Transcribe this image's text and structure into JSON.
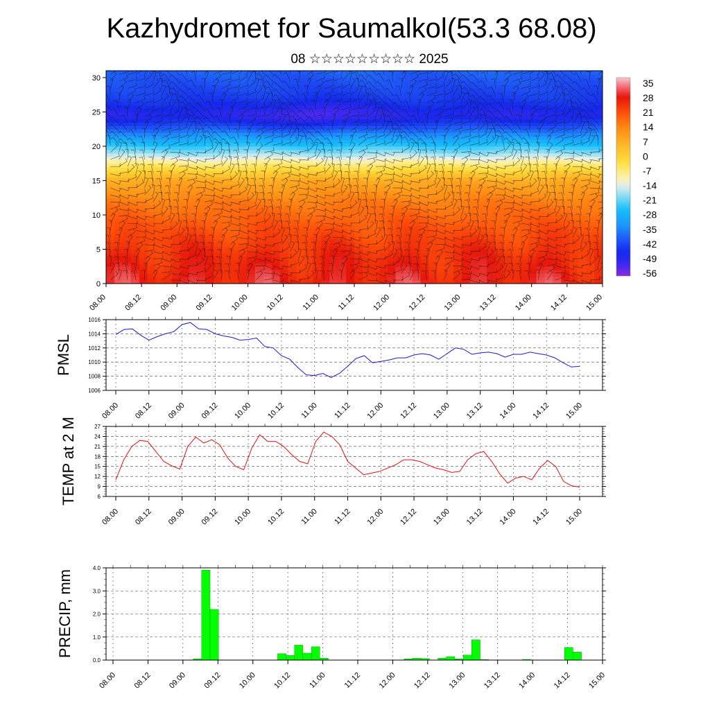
{
  "title": "Kazhydromet for Saumalkol(53.3 68.08)",
  "subtitle": "08 ☆☆☆☆☆☆☆☆☆ 2025",
  "time_labels": [
    "08.00",
    "08.12",
    "09.00",
    "09.12",
    "10.00",
    "10.12",
    "11.00",
    "11.12",
    "12.00",
    "12.12",
    "13.00",
    "13.12",
    "14.00",
    "14.12",
    "15.00"
  ],
  "colors": {
    "pmsl_line": "#1a1acc",
    "temp_line": "#e01010",
    "precip_bar": "#00ff00",
    "precip_edge": "#008800"
  },
  "chart_data": [
    {
      "type": "heatmap",
      "xlabel": "",
      "ylabel": "",
      "y_ticks": [
        0,
        5,
        10,
        15,
        20,
        25,
        30
      ],
      "ylim": [
        0,
        31
      ],
      "colorbar": {
        "ticks": [
          35,
          28,
          21,
          14,
          7,
          0,
          -7,
          -14,
          -21,
          -28,
          -35,
          -42,
          -49,
          -56
        ],
        "range": [
          -62,
          40
        ],
        "placement": "right"
      },
      "level_temps": [
        {
          "level": 0,
          "value": 30
        },
        {
          "level": 4,
          "value": 27
        },
        {
          "level": 8,
          "value": 22
        },
        {
          "level": 12,
          "value": 16
        },
        {
          "level": 15,
          "value": 8
        },
        {
          "level": 17,
          "value": -5
        },
        {
          "level": 19,
          "value": -20
        },
        {
          "level": 21,
          "value": -32
        },
        {
          "level": 23,
          "value": -45
        },
        {
          "level": 24.5,
          "value": -53
        },
        {
          "level": 27,
          "value": -47
        },
        {
          "level": 31,
          "value": -42
        }
      ],
      "overlay": "wind barbs",
      "grid": false
    },
    {
      "type": "line",
      "ylabel": "PMSL",
      "ylim": [
        1006,
        1016
      ],
      "y_ticks": [
        1006,
        1008,
        1010,
        1012,
        1014,
        1016
      ],
      "grid": true,
      "values": [
        1013.9,
        1014.6,
        1014.7,
        1013.8,
        1013.1,
        1013.6,
        1014.0,
        1014.3,
        1015.3,
        1015.6,
        1014.7,
        1014.6,
        1014.0,
        1013.7,
        1013.5,
        1013.1,
        1013.2,
        1013.4,
        1012.2,
        1012.0,
        1010.9,
        1010.4,
        1009.2,
        1008.2,
        1008.1,
        1008.4,
        1007.8,
        1008.4,
        1009.4,
        1010.5,
        1010.9,
        1009.9,
        1010.1,
        1010.3,
        1010.6,
        1010.6,
        1011.0,
        1011.2,
        1011.0,
        1010.4,
        1011.2,
        1012.0,
        1011.8,
        1011.1,
        1011.3,
        1011.4,
        1011.2,
        1010.7,
        1011.1,
        1011.1,
        1011.4,
        1011.2,
        1011.0,
        1010.6,
        1009.9,
        1009.3,
        1009.4
      ]
    },
    {
      "type": "line",
      "ylabel": "TEMP at 2 M",
      "ylim": [
        6,
        27
      ],
      "y_ticks": [
        6,
        9,
        12,
        15,
        18,
        21,
        24,
        27
      ],
      "grid": true,
      "values": [
        11,
        17,
        21,
        22.8,
        22.5,
        19.5,
        16.5,
        15.2,
        14.2,
        21,
        23.8,
        22,
        23,
        21.5,
        17.5,
        15,
        14,
        20.5,
        24.5,
        22.5,
        22.5,
        21,
        18.5,
        16.5,
        15.8,
        22.5,
        25.3,
        24,
        21.5,
        16.5,
        14.5,
        12.5,
        13,
        13.5,
        14.5,
        15.5,
        17,
        17,
        16.5,
        15.5,
        14.5,
        14,
        13.2,
        13.5,
        17,
        18.8,
        19.5,
        16.5,
        12.8,
        10,
        11.5,
        12,
        11,
        14.5,
        16.8,
        15,
        10.5,
        9.2,
        8.8
      ]
    },
    {
      "type": "bar",
      "ylabel": "PRECIP, mm",
      "ylim": [
        0,
        4
      ],
      "y_ticks": [
        0,
        1,
        2,
        3,
        4
      ],
      "y_tick_labels": [
        "0.0",
        "1.0",
        "2.0",
        "3.0",
        "4.0"
      ],
      "grid": true,
      "values": [
        0,
        0,
        0,
        0,
        0,
        0,
        0,
        0,
        0,
        0,
        0.05,
        3.9,
        2.2,
        0,
        0,
        0,
        0,
        0,
        0,
        0,
        0.28,
        0.2,
        0.65,
        0.3,
        0.58,
        0.08,
        0,
        0,
        0,
        0,
        0,
        0,
        0,
        0,
        0,
        0.05,
        0.08,
        0.07,
        0,
        0.08,
        0.15,
        0.05,
        0.22,
        0.88,
        0.02,
        0,
        0,
        0,
        0,
        0.03,
        0,
        0,
        0,
        0,
        0.55,
        0.35,
        0,
        0,
        0
      ]
    }
  ]
}
